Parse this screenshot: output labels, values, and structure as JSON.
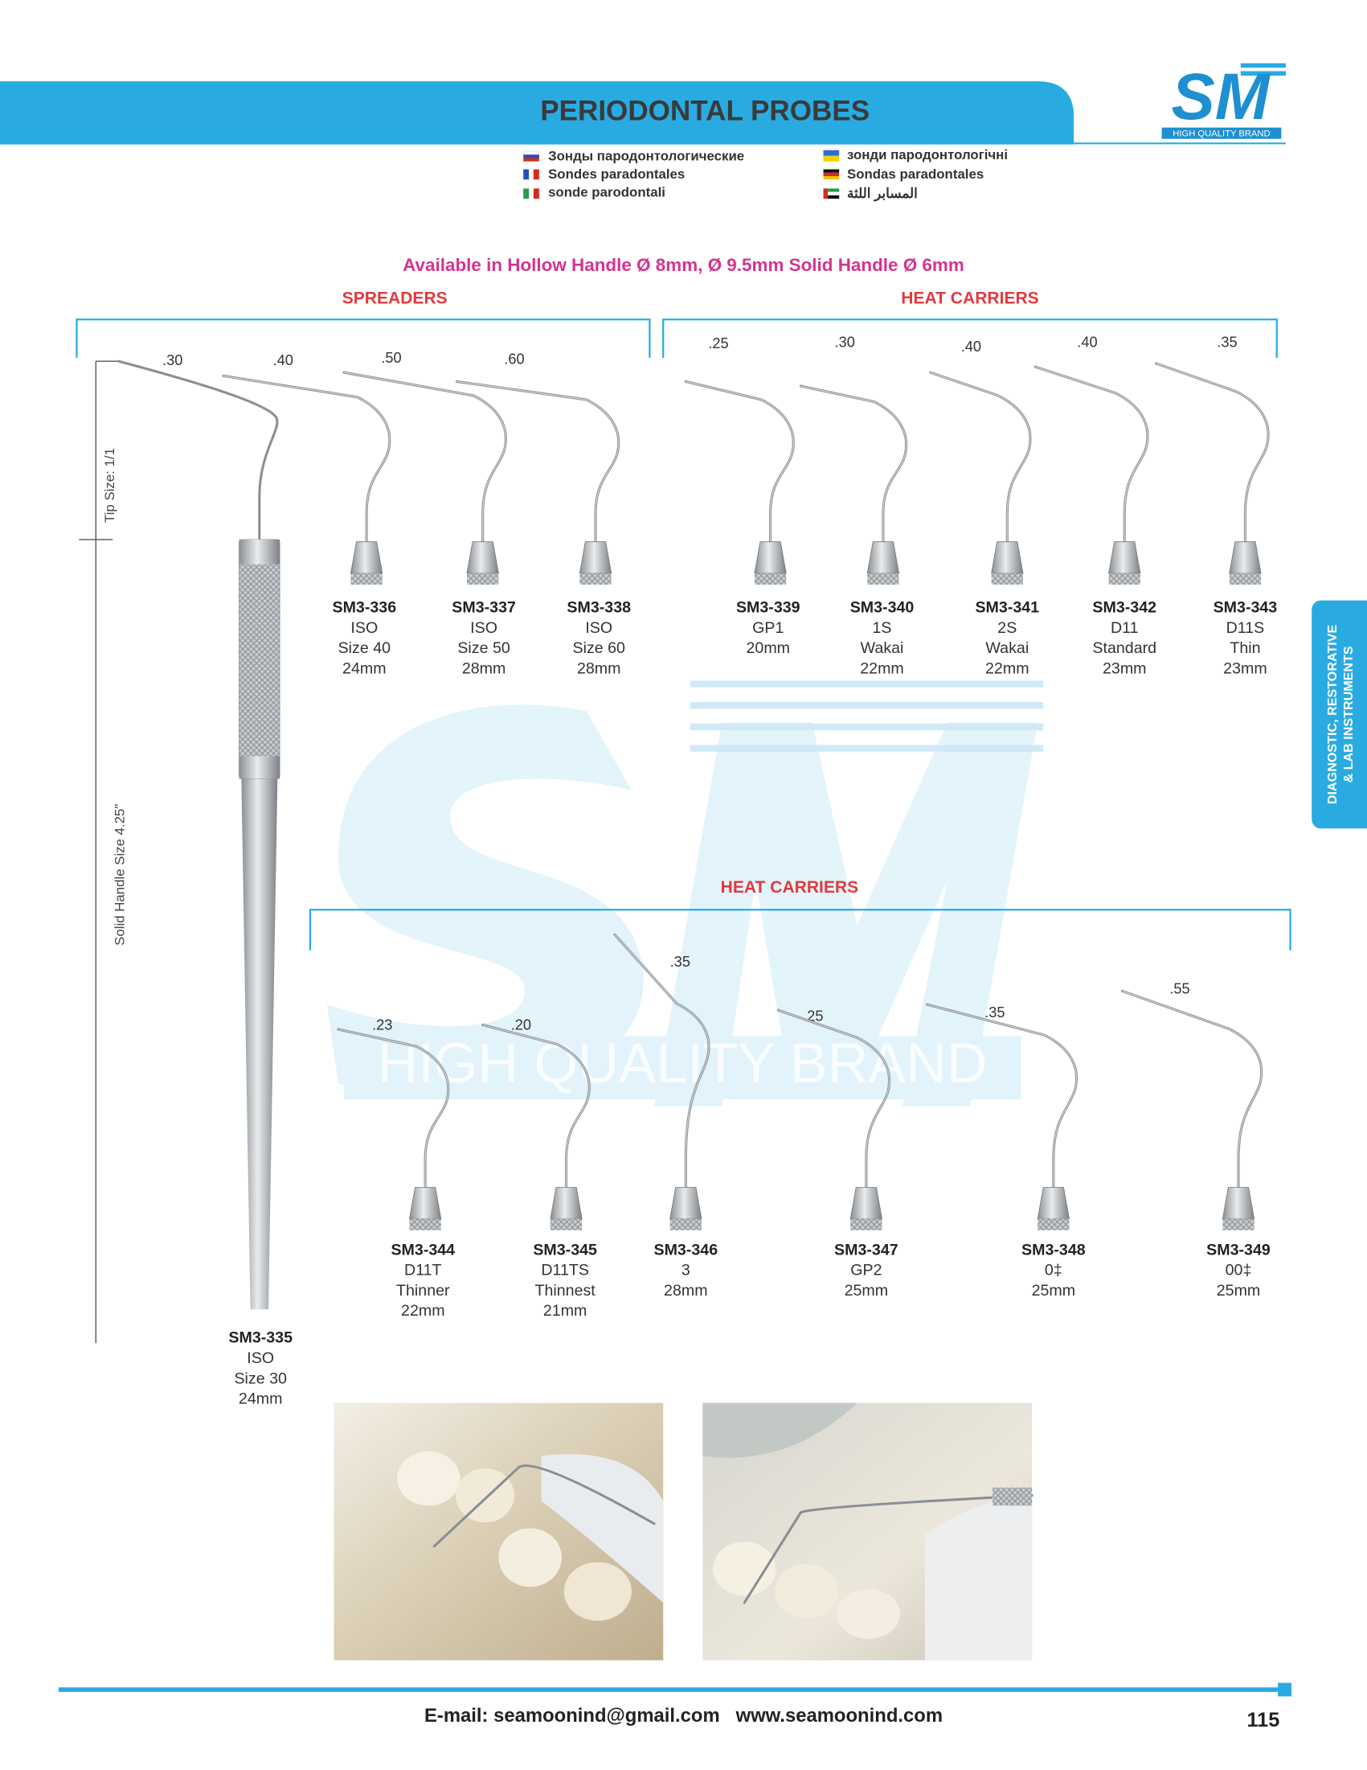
{
  "header": {
    "title": "PERIODONTAL PROBES"
  },
  "logo": {
    "mark": "SM",
    "tagline": "HIGH QUALITY BRAND"
  },
  "translations": [
    "Зонды пародонтологические",
    "Sondes paradontales",
    "sonde parodontali",
    "зонди пародонтологічні",
    "Sondas paradontales",
    "المسابر اللثة"
  ],
  "availability": "Available in Hollow Handle Ø 8mm, Ø 9.5mm Solid Handle Ø 6mm",
  "sections": [
    "SPREADERS",
    "HEAT CARRIERS",
    "HEAT CARRIERS"
  ],
  "side_labels": {
    "tip_size": "Tip Size: 1/1",
    "handle_size": "Solid Handle Size 4.25\""
  },
  "side_tab": [
    "DIAGNOSTIC, RESTORATIVE",
    "& LAB INSTRUMENTS"
  ],
  "watermark": "HIGH QUALITY BRAND",
  "products": [
    {
      "code": "SM3-335",
      "lines": [
        "ISO",
        "Size 30",
        "24mm"
      ],
      "tip": ".30"
    },
    {
      "code": "SM3-336",
      "lines": [
        "ISO",
        "Size 40",
        "24mm"
      ],
      "tip": ".40"
    },
    {
      "code": "SM3-337",
      "lines": [
        "ISO",
        "Size 50",
        "28mm"
      ],
      "tip": ".50"
    },
    {
      "code": "SM3-338",
      "lines": [
        "ISO",
        "Size 60",
        "28mm"
      ],
      "tip": ".60"
    },
    {
      "code": "SM3-339",
      "lines": [
        "GP1",
        "20mm"
      ],
      "tip": ".25"
    },
    {
      "code": "SM3-340",
      "lines": [
        "1S",
        "Wakai",
        "22mm"
      ],
      "tip": ".30"
    },
    {
      "code": "SM3-341",
      "lines": [
        "2S",
        "Wakai",
        "22mm"
      ],
      "tip": ".40"
    },
    {
      "code": "SM3-342",
      "lines": [
        "D11",
        "Standard",
        "23mm"
      ],
      "tip": ".40"
    },
    {
      "code": "SM3-343",
      "lines": [
        "D11S",
        "Thin",
        "23mm"
      ],
      "tip": ".35"
    },
    {
      "code": "SM3-344",
      "lines": [
        "D11T",
        "Thinner",
        "22mm"
      ],
      "tip": ".23"
    },
    {
      "code": "SM3-345",
      "lines": [
        "D11TS",
        "Thinnest",
        "21mm"
      ],
      "tip": ".20"
    },
    {
      "code": "SM3-346",
      "lines": [
        "3",
        "28mm"
      ],
      "tip": ".35"
    },
    {
      "code": "SM3-347",
      "lines": [
        "GP2",
        "25mm"
      ],
      "tip": ".25"
    },
    {
      "code": "SM3-348",
      "lines": [
        "0‡",
        "25mm"
      ],
      "tip": ".35"
    },
    {
      "code": "SM3-349",
      "lines": [
        "00‡",
        "25mm"
      ],
      "tip": ".55"
    }
  ],
  "footer": {
    "contact": "E-mail: seamoonind@gmail.com   www.seamoonind.com",
    "page_number": "115"
  }
}
